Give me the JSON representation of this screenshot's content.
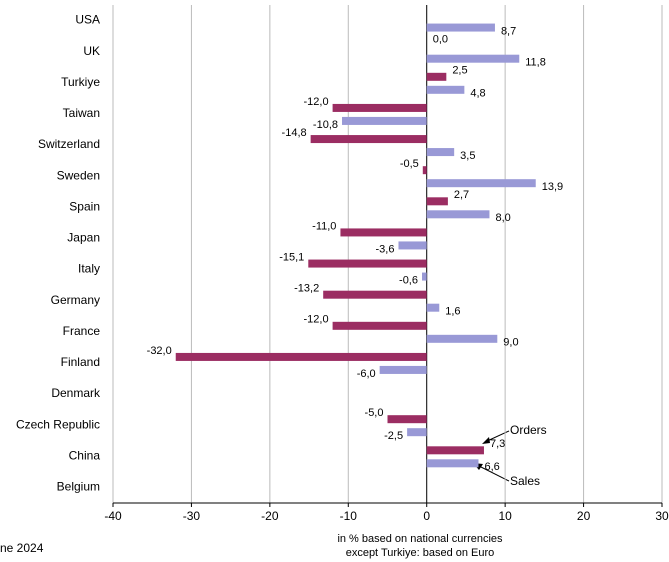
{
  "chart_data": {
    "type": "hbar",
    "categories": [
      "USA",
      "UK",
      "Turkiye",
      "Taiwan",
      "Switzerland",
      "Sweden",
      "Spain",
      "Japan",
      "Italy",
      "Germany",
      "France",
      "Finland",
      "Denmark",
      "Czech Republic",
      "China",
      "Belgium"
    ],
    "series": [
      {
        "name": "Orders",
        "color": "#9b2d62",
        "values": [
          null,
          0.0,
          2.5,
          -12.0,
          -14.8,
          -0.5,
          2.7,
          -11.0,
          -15.1,
          -13.2,
          -12.0,
          -32.0,
          null,
          -5.0,
          7.3,
          null
        ],
        "value_labels": [
          null,
          "0,0",
          "2,5",
          "-12,0",
          "-14,8",
          "-0,5",
          "2,7",
          "-11,0",
          "-15,1",
          "-13,2",
          "-12,0",
          "-32,0",
          null,
          "-5,0",
          "7,3",
          null
        ]
      },
      {
        "name": "Sales",
        "color": "#9999d6",
        "values": [
          8.7,
          11.8,
          4.8,
          -10.8,
          3.5,
          13.9,
          8.0,
          -3.6,
          -0.6,
          1.6,
          9.0,
          -6.0,
          null,
          -2.5,
          6.6,
          null
        ],
        "value_labels": [
          "8,7",
          "11,8",
          "4,8",
          "-10,8",
          "3,5",
          "13,9",
          "8,0",
          "-3,6",
          "-0,6",
          "1,6",
          "9,0",
          "-6,0",
          null,
          "-2,5",
          "6,6",
          null
        ]
      }
    ],
    "xlim": [
      -40,
      30
    ],
    "xticks": [
      -40,
      -30,
      -20,
      -10,
      0,
      10,
      20,
      30
    ],
    "grid": true,
    "xlabel": [
      "in % based on national currencies",
      "except Turkiye: based on Euro"
    ],
    "note": "ne 2024"
  }
}
